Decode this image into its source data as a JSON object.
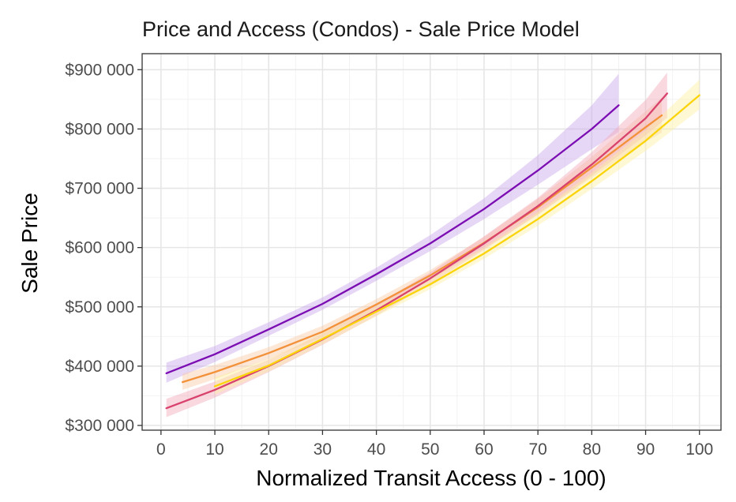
{
  "chart_data": {
    "type": "line",
    "title": "Price and Access (Condos) - Sale Price Model",
    "xlabel": "Normalized Transit Access (0 - 100)",
    "ylabel": "Sale Price",
    "xlim": [
      -3.5,
      104
    ],
    "ylim": [
      292000,
      927000
    ],
    "x_ticks": [
      0,
      10,
      20,
      30,
      40,
      50,
      60,
      70,
      80,
      90,
      100
    ],
    "x_tick_labels": [
      "0",
      "10",
      "20",
      "30",
      "40",
      "50",
      "60",
      "70",
      "80",
      "90",
      "100"
    ],
    "y_ticks": [
      300000,
      400000,
      500000,
      600000,
      700000,
      800000,
      900000
    ],
    "y_tick_labels": [
      "$300 000",
      "$400 000",
      "$500 000",
      "$600 000",
      "$700 000",
      "$800 000",
      "$900 000"
    ],
    "grid": true,
    "legend": "none",
    "series": [
      {
        "color": "#7B0DB3",
        "band_color": "#C9A6EB",
        "x": [
          1,
          10,
          20,
          30,
          40,
          50,
          60,
          70,
          80,
          85
        ],
        "y": [
          388000,
          420000,
          462000,
          505000,
          555000,
          607000,
          665000,
          730000,
          800000,
          840000
        ],
        "lower": [
          372000,
          407000,
          451000,
          495000,
          544000,
          594000,
          648000,
          706000,
          766000,
          795000
        ],
        "upper": [
          406000,
          434000,
          474000,
          516000,
          566000,
          621000,
          683000,
          756000,
          840000,
          893000
        ]
      },
      {
        "color": "#F3913A",
        "band_color": "#FAC9A3",
        "x": [
          4,
          10,
          20,
          30,
          40,
          50,
          60,
          70,
          80,
          90,
          93
        ],
        "y": [
          373000,
          390000,
          422000,
          458000,
          504000,
          553000,
          608000,
          668000,
          735000,
          803000,
          823000
        ],
        "lower": [
          360000,
          378000,
          412000,
          449000,
          496000,
          545000,
          598000,
          655000,
          718000,
          778000,
          794000
        ],
        "upper": [
          387000,
          402000,
          432000,
          468000,
          513000,
          562000,
          618000,
          682000,
          753000,
          830000,
          853000
        ]
      },
      {
        "color": "#D8426C",
        "band_color": "#F2A8BA",
        "x": [
          1,
          10,
          20,
          30,
          40,
          50,
          60,
          70,
          80,
          90,
          94
        ],
        "y": [
          329000,
          360000,
          400000,
          445000,
          494000,
          548000,
          607000,
          670000,
          740000,
          818000,
          860000
        ],
        "lower": [
          314000,
          347000,
          390000,
          436000,
          485000,
          539000,
          596000,
          656000,
          721000,
          789000,
          819000
        ],
        "upper": [
          345000,
          374000,
          411000,
          455000,
          504000,
          558000,
          619000,
          684000,
          761000,
          849000,
          895000
        ]
      },
      {
        "color": "#FBD40C",
        "band_color": "#FCEFA2",
        "x": [
          10,
          20,
          30,
          40,
          50,
          60,
          70,
          80,
          90,
          100
        ],
        "y": [
          366000,
          401000,
          446000,
          492000,
          538000,
          590000,
          648000,
          712000,
          780000,
          857000
        ],
        "lower": [
          352000,
          391000,
          437000,
          484000,
          530000,
          581000,
          637000,
          699000,
          763000,
          833000
        ],
        "upper": [
          381000,
          412000,
          456000,
          501000,
          547000,
          600000,
          660000,
          726000,
          798000,
          883000
        ]
      }
    ]
  }
}
